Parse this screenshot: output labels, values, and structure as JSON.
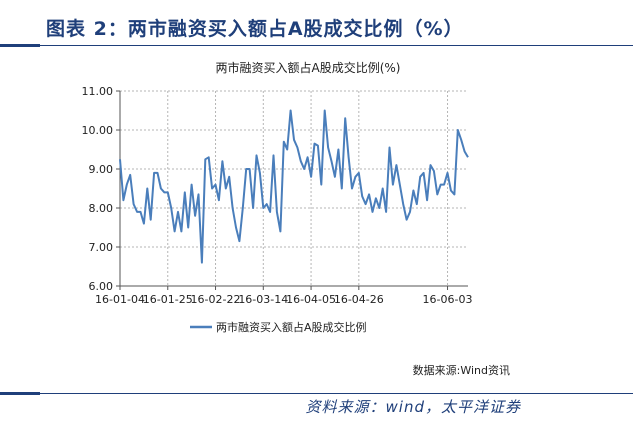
{
  "figure_title": "图表 2：两市融资买入额占A股成交比例（%）",
  "footer_source": "资料来源：wind，太平洋证券",
  "chart_data": {
    "type": "line",
    "title": "两市融资买入额占A股成交比例(%)",
    "xlabel": "",
    "ylabel": "",
    "ylim": [
      6.0,
      11.0
    ],
    "yticks": [
      "6.00",
      "7.00",
      "8.00",
      "9.00",
      "10.00",
      "11.00"
    ],
    "xtick_labels": [
      "16-01-04",
      "16-01-25",
      "16-02-22",
      "16-03-14",
      "16-04-05",
      "16-04-26",
      "16-06-03"
    ],
    "xtick_indices": [
      0,
      14,
      28,
      42,
      56,
      70,
      96
    ],
    "grid": true,
    "legend_position": "bottom",
    "source_note": "数据来源:Wind资讯",
    "color": "#4a7ebb",
    "series": [
      {
        "name": "两市融资买入额占A股成交比例",
        "values": [
          9.25,
          8.2,
          8.6,
          8.85,
          8.1,
          7.9,
          7.9,
          7.6,
          8.5,
          7.7,
          8.9,
          8.9,
          8.5,
          8.4,
          8.4,
          8.0,
          7.4,
          7.9,
          7.4,
          8.4,
          7.5,
          8.6,
          7.8,
          8.35,
          6.6,
          9.25,
          9.3,
          8.5,
          8.6,
          8.2,
          9.2,
          8.5,
          8.8,
          8.0,
          7.5,
          7.15,
          8.0,
          9.0,
          9.0,
          8.0,
          9.35,
          8.9,
          8.0,
          8.1,
          7.9,
          9.35,
          7.9,
          7.4,
          9.7,
          9.5,
          10.5,
          9.75,
          9.55,
          9.2,
          9.0,
          9.3,
          8.8,
          9.65,
          9.6,
          8.6,
          10.5,
          9.55,
          9.2,
          8.8,
          9.5,
          8.5,
          10.3,
          9.3,
          8.5,
          8.8,
          8.9,
          8.3,
          8.1,
          8.35,
          7.9,
          8.25,
          8.0,
          8.5,
          7.9,
          9.55,
          8.6,
          9.1,
          8.6,
          8.1,
          7.7,
          7.9,
          8.45,
          8.1,
          8.8,
          8.9,
          8.2,
          9.1,
          8.95,
          8.35,
          8.6,
          8.6,
          8.9,
          8.45,
          8.35,
          10.0,
          9.75,
          9.45,
          9.3
        ]
      }
    ]
  }
}
